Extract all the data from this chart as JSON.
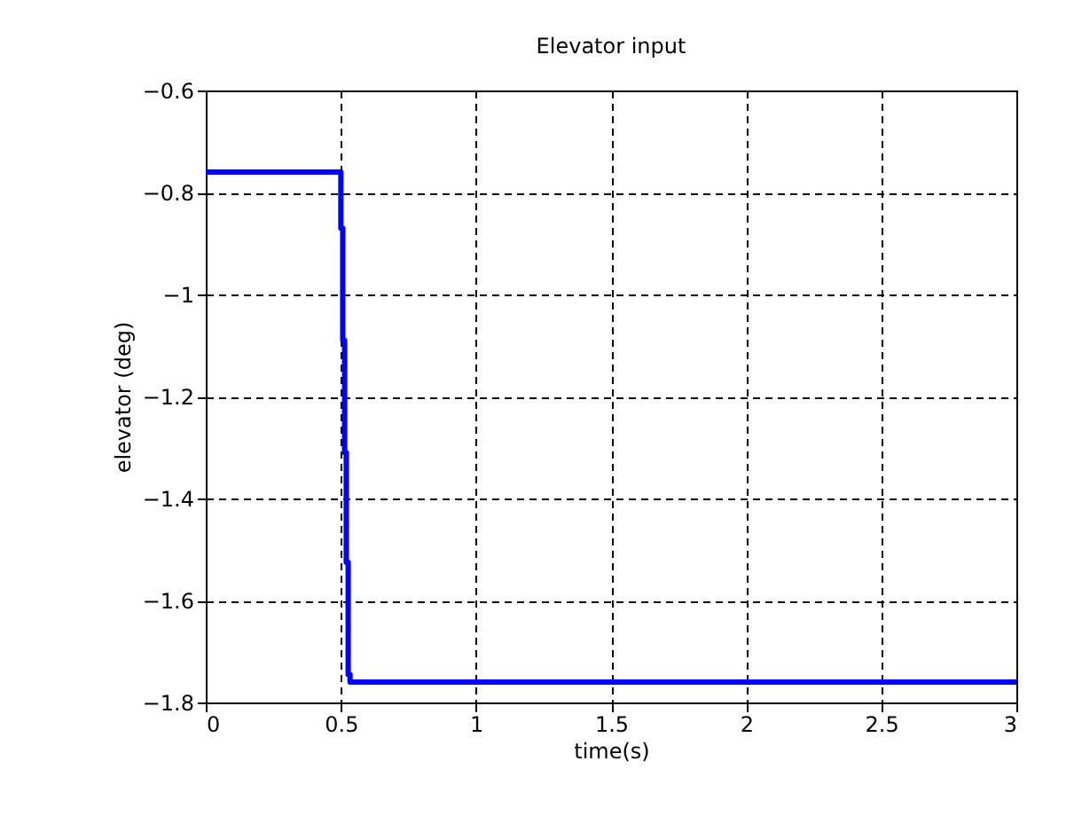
{
  "chart_data": {
    "type": "step",
    "title": "Elevator input",
    "xlabel": "time(s)",
    "ylabel": "elevator (deg)",
    "x": [
      0,
      0.5,
      0.507,
      0.514,
      0.52,
      0.527,
      0.534,
      3
    ],
    "series": [
      {
        "color": "#0000ff",
        "values": [
          -0.76,
          -0.87,
          -1.09,
          -1.31,
          -1.525,
          -1.745,
          -1.76,
          -1.76
        ]
      }
    ],
    "xlim": [
      0,
      3
    ],
    "xticks": [
      0,
      0.5,
      1,
      1.5,
      2,
      2.5,
      3
    ],
    "ylim": [
      -1.8,
      -0.6
    ],
    "yticks": [
      -1.8,
      -1.6,
      -1.4,
      -1.2,
      -1,
      -0.8,
      -0.6
    ],
    "grid": true,
    "line_style": "solid",
    "marker": "none"
  }
}
